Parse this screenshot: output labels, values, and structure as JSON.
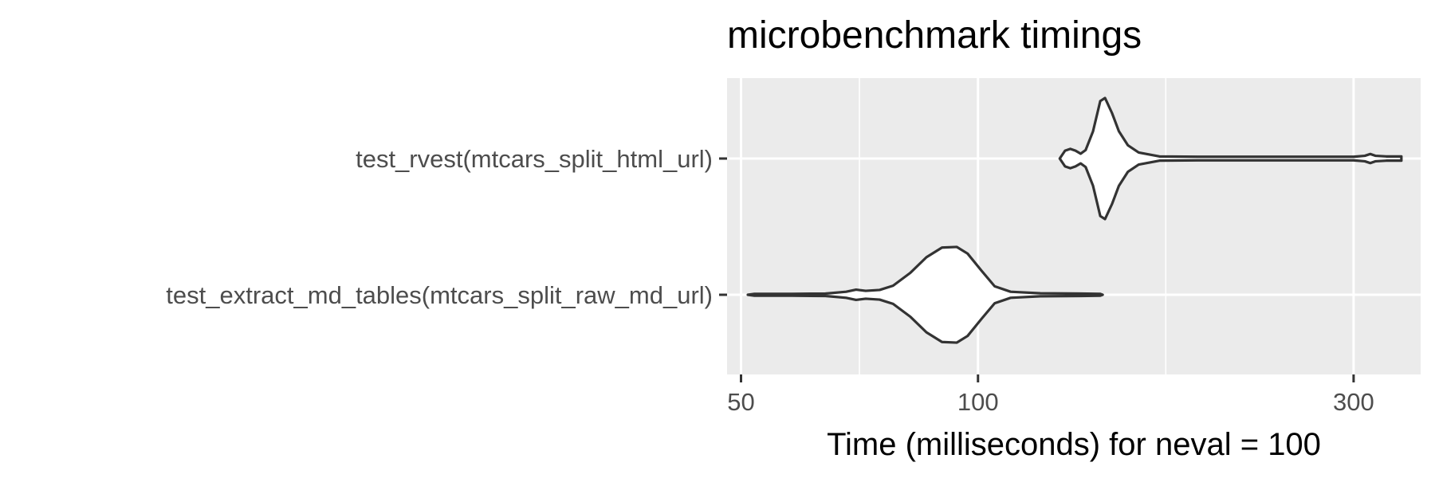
{
  "chart_data": {
    "type": "violin",
    "title": "microbenchmark timings",
    "xlabel": "Time (milliseconds) for neval = 100",
    "ylabel": "",
    "x_scale": "log10",
    "xlim": [
      48,
      365
    ],
    "x_ticks": [
      50,
      100,
      300
    ],
    "x_tick_labels": [
      "50",
      "100",
      "300"
    ],
    "x_minor_gridlines": [
      70.7,
      173.2
    ],
    "grid": true,
    "categories": [
      "test_rvest(mtcars_split_html_url)",
      "test_extract_md_tables(mtcars_split_raw_md_url)"
    ],
    "series": [
      {
        "label": "test_rvest(mtcars_split_html_url)",
        "density": [
          [
            127,
            0.0
          ],
          [
            129,
            0.13
          ],
          [
            131,
            0.16
          ],
          [
            133,
            0.13
          ],
          [
            135,
            0.08
          ],
          [
            137,
            0.14
          ],
          [
            140,
            0.45
          ],
          [
            143,
            0.95
          ],
          [
            145,
            1.0
          ],
          [
            148,
            0.75
          ],
          [
            151,
            0.45
          ],
          [
            155,
            0.22
          ],
          [
            160,
            0.1
          ],
          [
            170,
            0.035
          ],
          [
            190,
            0.03
          ],
          [
            220,
            0.03
          ],
          [
            260,
            0.03
          ],
          [
            300,
            0.03
          ],
          [
            310,
            0.045
          ],
          [
            315,
            0.075
          ],
          [
            320,
            0.045
          ],
          [
            330,
            0.035
          ],
          [
            345,
            0.035
          ]
        ]
      },
      {
        "label": "test_extract_md_tables(mtcars_split_raw_md_url)",
        "density": [
          [
            51,
            0.0
          ],
          [
            52,
            0.015
          ],
          [
            58,
            0.015
          ],
          [
            64,
            0.02
          ],
          [
            68,
            0.05
          ],
          [
            70,
            0.085
          ],
          [
            72,
            0.065
          ],
          [
            75,
            0.08
          ],
          [
            78,
            0.15
          ],
          [
            82,
            0.36
          ],
          [
            86,
            0.62
          ],
          [
            90,
            0.78
          ],
          [
            94,
            0.79
          ],
          [
            97,
            0.68
          ],
          [
            101,
            0.4
          ],
          [
            105,
            0.14
          ],
          [
            110,
            0.05
          ],
          [
            120,
            0.025
          ],
          [
            135,
            0.02
          ],
          [
            143,
            0.015
          ],
          [
            144,
            0.0
          ]
        ]
      }
    ]
  }
}
